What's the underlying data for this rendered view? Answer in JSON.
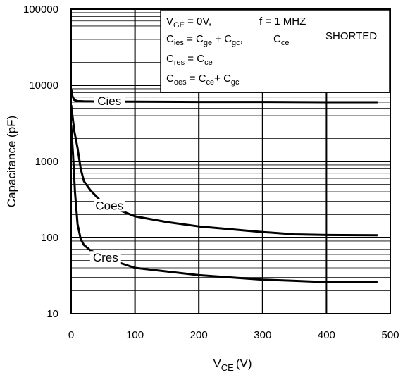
{
  "chart_data": {
    "type": "line",
    "xlabel": {
      "main": "V",
      "sub": "CE",
      "unit": "(V)"
    },
    "ylabel": "Capacitance (pF)",
    "xlim": [
      0,
      500
    ],
    "ylim": [
      10,
      100000
    ],
    "yscale": "log",
    "grid": true,
    "x_ticks": [
      "0",
      "100",
      "200",
      "300",
      "400",
      "500"
    ],
    "y_ticks": [
      "10",
      "100",
      "1000",
      "10000",
      "100000"
    ],
    "series": [
      {
        "name": "Cies",
        "x": [
          0,
          2,
          5,
          10,
          20,
          50,
          100,
          200,
          300,
          400,
          480
        ],
        "y": [
          9000,
          7200,
          6400,
          6200,
          6150,
          6100,
          6100,
          6050,
          6050,
          6000,
          6000
        ]
      },
      {
        "name": "Coes",
        "x": [
          0,
          5,
          10,
          15,
          20,
          30,
          50,
          100,
          150,
          200,
          300,
          350,
          400,
          480
        ],
        "y": [
          5500,
          2500,
          1500,
          800,
          550,
          420,
          280,
          190,
          160,
          140,
          118,
          110,
          108,
          107
        ]
      },
      {
        "name": "Cres",
        "x": [
          0,
          3,
          6,
          10,
          15,
          20,
          30,
          50,
          100,
          200,
          300,
          350,
          400,
          480
        ],
        "y": [
          3000,
          1200,
          400,
          150,
          95,
          80,
          68,
          55,
          40,
          32,
          28,
          27,
          26,
          26
        ]
      }
    ],
    "annotations": {
      "line1": {
        "a": "V",
        "a_sub": "GE",
        "b": " = 0V,",
        "c": "f = 1 MHZ"
      },
      "line2": {
        "a": "C",
        "a_sub": "ies",
        "b": " = C",
        "b_sub": "ge",
        "c": " + C",
        "c_sub": "gc",
        "d": ",",
        "e": "C",
        "e_sub": "ce",
        "f": "SHORTED"
      },
      "line3": {
        "a": "C",
        "a_sub": "res",
        "b": " = C",
        "b_sub": "ce"
      },
      "line4": {
        "a": "C",
        "a_sub": "oes",
        "b": " = C",
        "b_sub": "ce",
        "c": "+ C",
        "c_sub": "gc"
      }
    }
  }
}
